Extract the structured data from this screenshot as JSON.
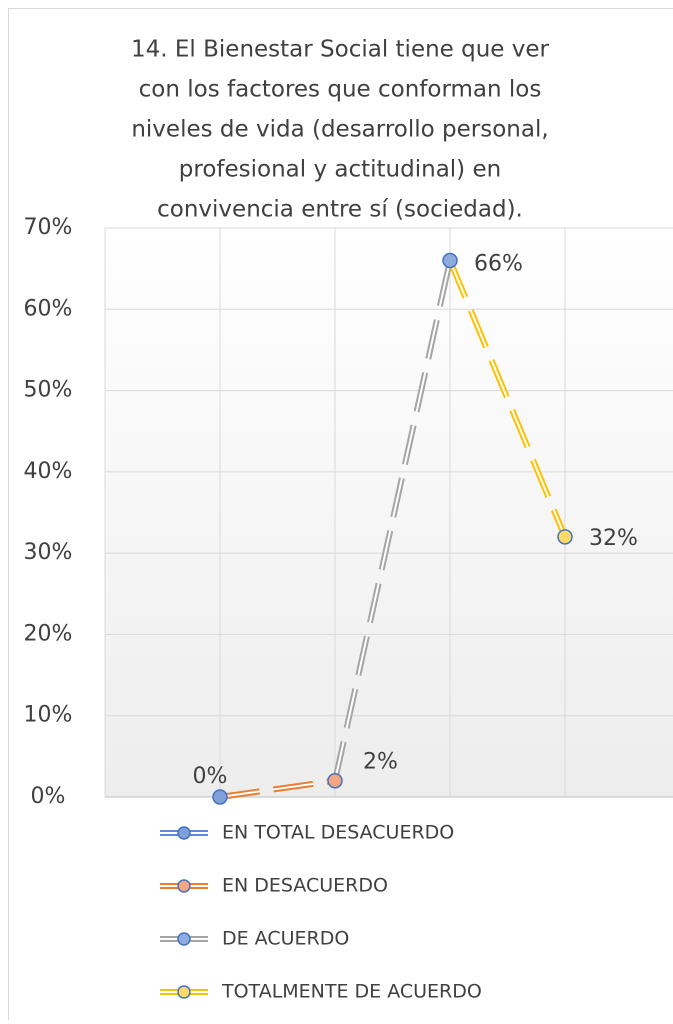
{
  "chart_data": {
    "type": "line",
    "title": [
      "14.   El Bienestar Social tiene que ver",
      "con los factores que conforman los",
      "niveles de vida (desarrollo personal,",
      "profesional y actitudinal) en",
      "convivencia entre sí (sociedad)."
    ],
    "categories": [
      "EN TOTAL DESACUERDO",
      "EN DESACUERDO",
      "DE ACUERDO",
      "TOTALMENTE DE ACUERDO"
    ],
    "values": [
      0,
      2,
      66,
      32
    ],
    "value_labels": [
      "0%",
      "2%",
      "66%",
      "32%"
    ],
    "colors": [
      "#5b8bd8",
      "#ed7d31",
      "#a5a5a5",
      "#ffc000"
    ],
    "marker_colors": [
      "#7f9fd8",
      "#f4a582",
      "#8faadc",
      "#ffd966"
    ],
    "ylim": [
      0,
      70
    ],
    "yticks": [
      {
        "value": 0,
        "label": "0%"
      },
      {
        "value": 10,
        "label": "10%"
      },
      {
        "value": 20,
        "label": "20%"
      },
      {
        "value": 30,
        "label": "30%"
      },
      {
        "value": 40,
        "label": "40%"
      },
      {
        "value": 50,
        "label": "50%"
      },
      {
        "value": 60,
        "label": "60%"
      },
      {
        "value": 70,
        "label": "70%"
      }
    ],
    "grid": true,
    "legend": "bottom"
  }
}
